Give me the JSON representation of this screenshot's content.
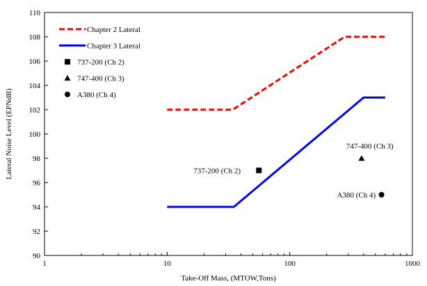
{
  "chart_data": {
    "type": "line",
    "title": "",
    "xlabel": "Take-Off Mass, (MTOW,Tons)",
    "ylabel": "Lateral Noise Level (EPNdB)",
    "x_scale": "log",
    "xlim": [
      1,
      1000
    ],
    "ylim": [
      90,
      110
    ],
    "x_ticks": [
      1,
      10,
      100,
      1000
    ],
    "x_tick_labels": [
      "1",
      "10",
      "100",
      "1000"
    ],
    "y_ticks": [
      90,
      92,
      94,
      96,
      98,
      100,
      102,
      104,
      106,
      108,
      110
    ],
    "y_tick_labels": [
      "90",
      "92",
      "94",
      "96",
      "98",
      "100",
      "102",
      "104",
      "106",
      "108",
      "110"
    ],
    "grid": false,
    "legend_position": "top-left",
    "series": [
      {
        "name": "Chapter 2 Lateral",
        "kind": "line",
        "style": "dashed",
        "color": "#ff0000",
        "points": [
          [
            10,
            102
          ],
          [
            34.3,
            102
          ],
          [
            280,
            108
          ],
          [
            600,
            108
          ]
        ]
      },
      {
        "name": "Chapter 3 Lateral",
        "kind": "line",
        "style": "solid",
        "color": "#0000ff",
        "points": [
          [
            10,
            94
          ],
          [
            35,
            94
          ],
          [
            400,
            103
          ],
          [
            600,
            103
          ]
        ]
      },
      {
        "name": "737-200 (Ch 2)",
        "kind": "point",
        "marker": "square",
        "color": "#000000",
        "points": [
          [
            56,
            97
          ]
        ],
        "annotation": "737-200 (Ch 2)"
      },
      {
        "name": "747-400 (Ch 3)",
        "kind": "point",
        "marker": "triangle",
        "color": "#000000",
        "points": [
          [
            385,
            98
          ]
        ],
        "annotation": "747-400 (Ch 3)"
      },
      {
        "name": "A380 (Ch 4)",
        "kind": "point",
        "marker": "circle",
        "color": "#000000",
        "points": [
          [
            560,
            95
          ]
        ],
        "annotation": "A380 (Ch 4)"
      }
    ]
  }
}
